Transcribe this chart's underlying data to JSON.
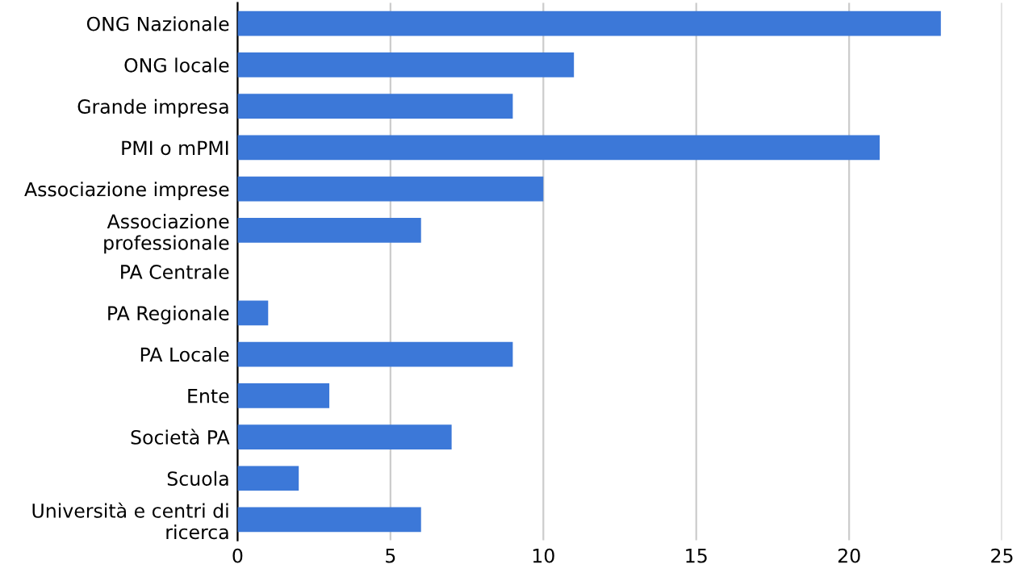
{
  "chart_data": {
    "type": "bar",
    "orientation": "horizontal",
    "categories": [
      "ONG Nazionale",
      "ONG locale",
      "Grande impresa",
      "PMI o mPMI",
      "Associazione imprese",
      "Associazione\nprofessionale",
      "PA Centrale",
      "PA Regionale",
      "PA Locale",
      "Ente",
      "Società PA",
      "Scuola",
      "Università e centri di\nricerca"
    ],
    "values": [
      23,
      11,
      9,
      21,
      10,
      6,
      0,
      1,
      9,
      3,
      7,
      2,
      6
    ],
    "color": "#3c78d8",
    "xlim": [
      0,
      25
    ],
    "xticks": [
      0,
      5,
      10,
      15,
      20,
      25
    ],
    "grid": "x",
    "legend": false
  }
}
